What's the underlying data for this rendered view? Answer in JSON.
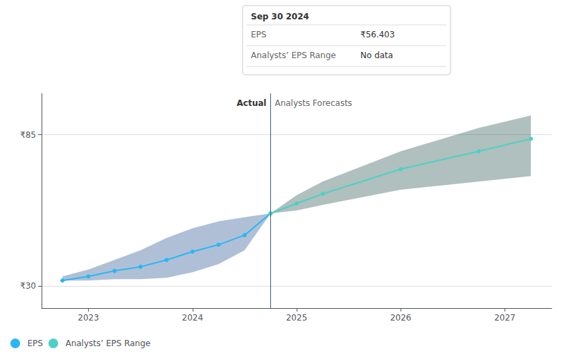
{
  "chart_data": {
    "type": "line",
    "xlim": [
      2022.55,
      2027.45
    ],
    "xticks": [
      2023,
      2024,
      2025,
      2026,
      2027
    ],
    "ylim": [
      22,
      100
    ],
    "yticks": [
      {
        "value": 30,
        "label": "₹30"
      },
      {
        "value": 85,
        "label": "₹85"
      }
    ],
    "grid": true,
    "legend": "lower left",
    "series": [
      {
        "type": "band",
        "color": "#1a4a8a",
        "x": [
          2022.75,
          2023.0,
          2023.25,
          2023.5,
          2023.75,
          2024.0,
          2024.25,
          2024.5,
          2024.75
        ],
        "lower": [
          32.0,
          32.0,
          32.5,
          32.5,
          33.0,
          35.0,
          38.0,
          43.0,
          56.4
        ],
        "upper": [
          33.5,
          36.0,
          39.5,
          43.0,
          47.5,
          51.0,
          53.5,
          55.0,
          56.4
        ]
      },
      {
        "type": "band",
        "color": "#1a4a44",
        "x": [
          2024.75,
          2025.0,
          2025.25,
          2026.0,
          2026.75,
          2027.25
        ],
        "lower": [
          56.4,
          57.5,
          59.5,
          65.0,
          68.0,
          70.0
        ],
        "upper": [
          56.4,
          63.0,
          68.0,
          79.0,
          87.5,
          92.0
        ]
      },
      {
        "name": "EPS",
        "type": "line",
        "color": "#29b6f6",
        "marker": "circle",
        "x": [
          2022.75,
          2023.0,
          2023.25,
          2023.5,
          2023.75,
          2024.0,
          2024.25,
          2024.5,
          2024.75
        ],
        "values": [
          32.0,
          33.5,
          35.5,
          37.0,
          39.5,
          42.5,
          45.0,
          48.5,
          56.4
        ]
      },
      {
        "name": "Analysts’ EPS Range",
        "type": "line",
        "color": "#4dd0c4",
        "marker": "circle",
        "x": [
          2024.75,
          2025.0,
          2025.25,
          2026.0,
          2026.75,
          2027.25
        ],
        "values": [
          56.4,
          60.0,
          63.5,
          72.5,
          79.0,
          83.5
        ]
      }
    ],
    "divider": {
      "x": 2024.75,
      "color": "#3a6080",
      "left_label": "Actual",
      "right_label": "Analysts Forecasts"
    },
    "tooltip_box": {
      "title": "Sep 30 2024",
      "rows": [
        {
          "label": "EPS",
          "value": "₹56.403"
        },
        {
          "label": "Analysts’ EPS Range",
          "value": "No data"
        }
      ]
    }
  }
}
